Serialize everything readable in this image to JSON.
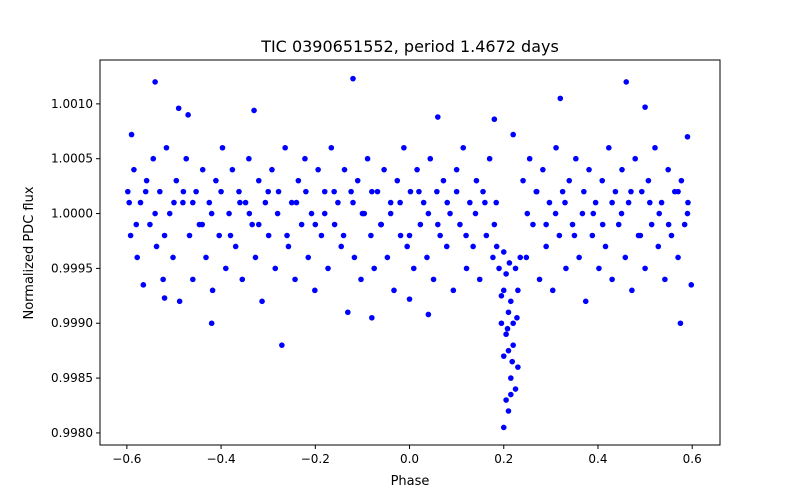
{
  "chart_data": {
    "type": "scatter",
    "title": "TIC 0390651552, period 1.4672 days",
    "xlabel": "Phase",
    "ylabel": "Normalized PDC flux",
    "xlim": [
      -0.657,
      0.659
    ],
    "ylim": [
      0.99789,
      1.0014
    ],
    "xticks": [
      -0.6,
      -0.4,
      -0.2,
      0.0,
      0.2,
      0.4,
      0.6
    ],
    "xtick_labels": [
      "−0.6",
      "−0.4",
      "−0.2",
      "0.0",
      "0.2",
      "0.4",
      "0.6"
    ],
    "yticks": [
      0.998,
      0.9985,
      0.999,
      0.9995,
      1.0,
      1.0005,
      1.001
    ],
    "ytick_labels": [
      "0.9980",
      "0.9985",
      "0.9990",
      "0.9995",
      "1.0000",
      "1.0005",
      "1.0010"
    ],
    "marker_color": "#0000ff",
    "grid": false,
    "series": [
      {
        "name": "flux",
        "points": [
          [
            -0.54,
            1.0012
          ],
          [
            -0.12,
            1.00123
          ],
          [
            0.32,
            1.00105
          ],
          [
            0.46,
            1.0012
          ],
          [
            0.5,
            1.00097
          ],
          [
            -0.49,
            1.00096
          ],
          [
            -0.33,
            1.00094
          ],
          [
            0.06,
            1.00088
          ],
          [
            -0.42,
            0.999
          ],
          [
            0.575,
            0.999
          ],
          [
            -0.08,
            0.99905
          ],
          [
            0.04,
            0.99908
          ],
          [
            0.0,
            0.99922
          ],
          [
            -0.52,
            0.99923
          ],
          [
            -0.59,
            1.00072
          ],
          [
            0.22,
            1.00072
          ],
          [
            0.18,
            1.00086
          ],
          [
            -0.47,
            1.0009
          ],
          [
            0.59,
            1.0007
          ],
          [
            0.2,
            0.99805
          ],
          [
            0.205,
            0.9983
          ],
          [
            0.21,
            0.9982
          ],
          [
            0.215,
            0.9985
          ],
          [
            0.2,
            0.9987
          ],
          [
            0.205,
            0.9989
          ],
          [
            0.21,
            0.9991
          ],
          [
            0.22,
            0.9988
          ],
          [
            0.225,
            0.9984
          ],
          [
            0.23,
            0.9986
          ],
          [
            0.195,
            0.999
          ],
          [
            0.215,
            0.9992
          ],
          [
            0.2,
            0.9993
          ],
          [
            0.21,
            0.99875
          ],
          [
            0.22,
            0.999
          ],
          [
            0.23,
            0.9993
          ],
          [
            0.225,
            0.9995
          ],
          [
            0.19,
            0.9995
          ],
          [
            0.185,
            0.9997
          ],
          [
            0.235,
            0.9996
          ],
          [
            0.205,
            0.99945
          ],
          [
            0.2,
            0.99965
          ],
          [
            0.215,
            0.99835
          ],
          [
            0.195,
            0.99925
          ],
          [
            0.208,
            0.99895
          ],
          [
            0.218,
            0.99865
          ],
          [
            0.228,
            0.99905
          ],
          [
            0.212,
            0.99955
          ],
          [
            -0.598,
            1.0002
          ],
          [
            -0.592,
            0.9998
          ],
          [
            -0.585,
            1.0004
          ],
          [
            -0.578,
            0.9996
          ],
          [
            -0.571,
            1.0001
          ],
          [
            -0.565,
            0.99935
          ],
          [
            -0.558,
            1.0003
          ],
          [
            -0.551,
            0.9999
          ],
          [
            -0.544,
            1.0005
          ],
          [
            -0.537,
            0.9997
          ],
          [
            -0.53,
            1.0002
          ],
          [
            -0.523,
            0.9994
          ],
          [
            -0.516,
            1.0006
          ],
          [
            -0.509,
            1.0
          ],
          [
            -0.502,
            0.9996
          ],
          [
            -0.495,
            1.0003
          ],
          [
            -0.488,
            0.9992
          ],
          [
            -0.481,
            1.0001
          ],
          [
            -0.474,
            1.0005
          ],
          [
            -0.467,
            0.9998
          ],
          [
            -0.46,
            0.9994
          ],
          [
            -0.453,
            1.0002
          ],
          [
            -0.446,
            0.9999
          ],
          [
            -0.439,
            1.0004
          ],
          [
            -0.432,
            0.9996
          ],
          [
            -0.425,
            1.0001
          ],
          [
            -0.418,
            0.9993
          ],
          [
            -0.411,
            1.0003
          ],
          [
            -0.404,
            0.9998
          ],
          [
            -0.397,
            1.0006
          ],
          [
            -0.39,
            0.9995
          ],
          [
            -0.383,
            1.0
          ],
          [
            -0.376,
            1.0004
          ],
          [
            -0.369,
            0.9997
          ],
          [
            -0.362,
            1.0002
          ],
          [
            -0.355,
            0.9994
          ],
          [
            -0.348,
            1.0001
          ],
          [
            -0.341,
            1.0005
          ],
          [
            -0.334,
            0.9999
          ],
          [
            -0.327,
            0.9996
          ],
          [
            -0.32,
            1.0003
          ],
          [
            -0.313,
            0.9992
          ],
          [
            -0.306,
            1.0001
          ],
          [
            -0.299,
            0.9998
          ],
          [
            -0.292,
            1.0004
          ],
          [
            -0.285,
            0.9995
          ],
          [
            -0.278,
            1.0002
          ],
          [
            -0.271,
            0.9988
          ],
          [
            -0.264,
            1.0006
          ],
          [
            -0.257,
            0.9997
          ],
          [
            -0.25,
            1.0001
          ],
          [
            -0.243,
            0.9994
          ],
          [
            -0.236,
            1.0003
          ],
          [
            -0.229,
            0.9999
          ],
          [
            -0.222,
            1.0005
          ],
          [
            -0.215,
            0.9996
          ],
          [
            -0.208,
            1.0
          ],
          [
            -0.201,
            0.9993
          ],
          [
            -0.194,
            1.0004
          ],
          [
            -0.187,
            0.9998
          ],
          [
            -0.18,
            1.0002
          ],
          [
            -0.173,
            0.9995
          ],
          [
            -0.166,
            1.0006
          ],
          [
            -0.159,
            0.9999
          ],
          [
            -0.152,
            1.0001
          ],
          [
            -0.145,
            0.9997
          ],
          [
            -0.138,
            1.0004
          ],
          [
            -0.131,
            0.9991
          ],
          [
            -0.124,
            1.0002
          ],
          [
            -0.117,
            0.9996
          ],
          [
            -0.11,
            1.0003
          ],
          [
            -0.103,
            0.9994
          ],
          [
            -0.096,
            1.0
          ],
          [
            -0.089,
            1.0005
          ],
          [
            -0.082,
            0.9998
          ],
          [
            -0.075,
            0.9995
          ],
          [
            -0.068,
            1.0002
          ],
          [
            -0.061,
            0.9999
          ],
          [
            -0.054,
            1.0004
          ],
          [
            -0.047,
            0.9996
          ],
          [
            -0.04,
            1.0001
          ],
          [
            -0.033,
            0.9993
          ],
          [
            -0.026,
            1.0003
          ],
          [
            -0.019,
            0.9998
          ],
          [
            -0.012,
            1.0006
          ],
          [
            -0.005,
            0.9997
          ],
          [
            0.002,
            1.0002
          ],
          [
            0.009,
            0.9995
          ],
          [
            0.016,
            1.0004
          ],
          [
            0.023,
            0.9999
          ],
          [
            0.03,
            1.0001
          ],
          [
            0.037,
            0.9996
          ],
          [
            0.044,
            1.0005
          ],
          [
            0.051,
            0.9994
          ],
          [
            0.058,
            1.0002
          ],
          [
            0.065,
            0.9998
          ],
          [
            0.072,
            1.0003
          ],
          [
            0.079,
            0.9997
          ],
          [
            0.086,
            1.0
          ],
          [
            0.093,
            0.9993
          ],
          [
            0.1,
            1.0004
          ],
          [
            0.107,
            0.9999
          ],
          [
            0.114,
            1.0006
          ],
          [
            0.121,
            0.9995
          ],
          [
            0.128,
            1.0001
          ],
          [
            0.135,
            0.9997
          ],
          [
            0.142,
            1.0003
          ],
          [
            0.149,
            0.9994
          ],
          [
            0.156,
            1.0002
          ],
          [
            0.163,
            0.9998
          ],
          [
            0.17,
            1.0005
          ],
          [
            0.177,
            0.9996
          ],
          [
            0.184,
            1.0001
          ],
          [
            0.241,
            1.0003
          ],
          [
            0.248,
            0.9996
          ],
          [
            0.255,
            1.0005
          ],
          [
            0.262,
            0.9999
          ],
          [
            0.269,
            1.0002
          ],
          [
            0.276,
            0.9994
          ],
          [
            0.283,
            1.0004
          ],
          [
            0.29,
            0.9997
          ],
          [
            0.297,
            1.0001
          ],
          [
            0.304,
            0.9993
          ],
          [
            0.311,
            1.0006
          ],
          [
            0.318,
            0.9998
          ],
          [
            0.325,
            1.0002
          ],
          [
            0.332,
            0.9995
          ],
          [
            0.339,
            1.0003
          ],
          [
            0.346,
            0.9999
          ],
          [
            0.353,
            1.0005
          ],
          [
            0.36,
            0.9996
          ],
          [
            0.367,
            1.0
          ],
          [
            0.374,
            0.9992
          ],
          [
            0.381,
            1.0004
          ],
          [
            0.388,
            0.9998
          ],
          [
            0.395,
            1.0001
          ],
          [
            0.402,
            0.9995
          ],
          [
            0.409,
            1.0003
          ],
          [
            0.416,
            0.9997
          ],
          [
            0.423,
            1.0006
          ],
          [
            0.43,
            0.9994
          ],
          [
            0.437,
            1.0002
          ],
          [
            0.444,
            0.9999
          ],
          [
            0.451,
            1.0004
          ],
          [
            0.458,
            0.9996
          ],
          [
            0.465,
            1.0001
          ],
          [
            0.472,
            0.9993
          ],
          [
            0.479,
            1.0005
          ],
          [
            0.486,
            0.9998
          ],
          [
            0.493,
            1.0002
          ],
          [
            0.5,
            0.9995
          ],
          [
            0.507,
            1.0003
          ],
          [
            0.514,
            0.9999
          ],
          [
            0.521,
            1.0006
          ],
          [
            0.528,
            0.9997
          ],
          [
            0.535,
            1.0001
          ],
          [
            0.542,
            0.9994
          ],
          [
            0.549,
            1.0004
          ],
          [
            0.556,
            0.9998
          ],
          [
            0.563,
            1.0002
          ],
          [
            0.57,
            0.9996
          ],
          [
            0.577,
            1.0003
          ],
          [
            0.584,
            0.9999
          ],
          [
            0.591,
            1.0001
          ],
          [
            0.598,
            0.99935
          ],
          [
            -0.595,
            1.0001
          ],
          [
            -0.58,
            0.9999
          ],
          [
            -0.56,
            1.0002
          ],
          [
            -0.54,
            1.0
          ],
          [
            -0.52,
            0.9998
          ],
          [
            -0.5,
            1.0001
          ],
          [
            -0.48,
            1.0002
          ],
          [
            -0.46,
            1.0001
          ],
          [
            -0.44,
            0.9999
          ],
          [
            -0.42,
            1.0
          ],
          [
            -0.4,
            1.0002
          ],
          [
            -0.38,
            0.9998
          ],
          [
            -0.36,
            1.0001
          ],
          [
            -0.34,
            1.0
          ],
          [
            -0.32,
            0.9999
          ],
          [
            -0.3,
            1.0002
          ],
          [
            -0.28,
            1.0
          ],
          [
            -0.26,
            0.9998
          ],
          [
            -0.24,
            1.0001
          ],
          [
            -0.22,
            1.0002
          ],
          [
            -0.2,
            0.9999
          ],
          [
            -0.18,
            1.0
          ],
          [
            -0.16,
            1.0002
          ],
          [
            -0.14,
            0.9998
          ],
          [
            -0.12,
            1.0001
          ],
          [
            -0.1,
            1.0
          ],
          [
            -0.08,
            1.0002
          ],
          [
            -0.06,
            0.9999
          ],
          [
            -0.04,
            1.0
          ],
          [
            -0.02,
            1.0001
          ],
          [
            0.0,
            0.9998
          ],
          [
            0.02,
            1.0002
          ],
          [
            0.04,
            1.0
          ],
          [
            0.06,
            0.9999
          ],
          [
            0.08,
            1.0001
          ],
          [
            0.1,
            1.0002
          ],
          [
            0.12,
            0.9998
          ],
          [
            0.14,
            1.0
          ],
          [
            0.16,
            1.0001
          ],
          [
            0.18,
            0.9999
          ],
          [
            0.25,
            1.0
          ],
          [
            0.27,
            1.0002
          ],
          [
            0.29,
            0.9999
          ],
          [
            0.31,
            1.0
          ],
          [
            0.33,
            1.0001
          ],
          [
            0.35,
            0.9998
          ],
          [
            0.37,
            1.0002
          ],
          [
            0.39,
            1.0
          ],
          [
            0.41,
            0.9999
          ],
          [
            0.43,
            1.0001
          ],
          [
            0.45,
            1.0
          ],
          [
            0.47,
            1.0002
          ],
          [
            0.49,
            0.9998
          ],
          [
            0.51,
            1.0001
          ],
          [
            0.53,
            1.0
          ],
          [
            0.55,
            0.9999
          ],
          [
            0.57,
            1.0002
          ],
          [
            0.59,
            1.0
          ]
        ]
      }
    ]
  }
}
